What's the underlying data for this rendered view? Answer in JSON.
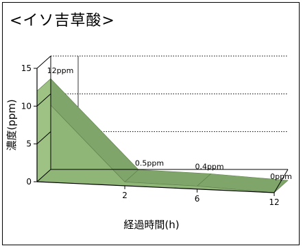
{
  "chart_data": {
    "type": "area",
    "title": "<イソ吉草酸>",
    "xlabel": "経過時間(h)",
    "ylabel": "濃度(ppm)",
    "x": [
      0,
      2,
      6,
      12
    ],
    "values": [
      12,
      0.5,
      0.4,
      0
    ],
    "data_labels": [
      "12ppm",
      "0.5ppm",
      "0.4ppm",
      "0ppm"
    ],
    "x_tick_labels": [
      "2",
      "6",
      "12"
    ],
    "y_ticks": [
      0,
      5,
      10,
      15
    ],
    "y_tick_labels": [
      "0",
      "5",
      "10",
      "15"
    ],
    "ylim": [
      0,
      15
    ],
    "grid": true,
    "three_d": true,
    "colors": {
      "area_side": "#9dc284",
      "area_front": "#8fb577",
      "area_top": "#7fa56a",
      "grid": "#000000"
    }
  }
}
